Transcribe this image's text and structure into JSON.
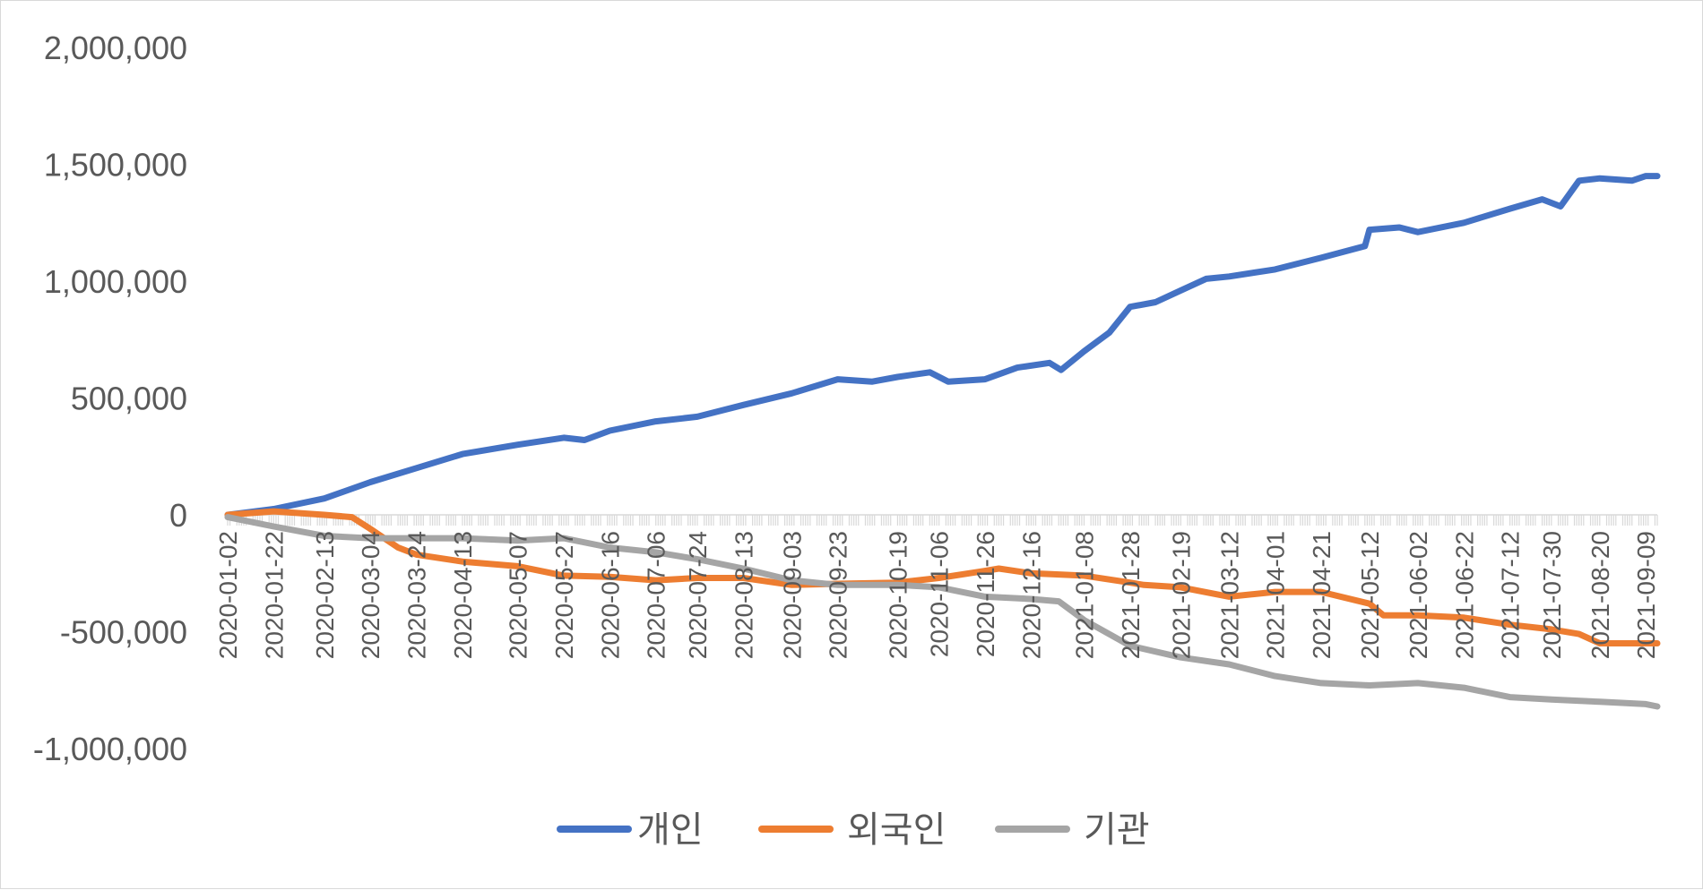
{
  "chart_data": {
    "type": "line",
    "title": "",
    "xlabel": "",
    "ylabel": "",
    "ylim": [
      -1000000,
      2000000
    ],
    "yticks": [
      2000000,
      1500000,
      1000000,
      500000,
      0,
      -500000,
      -1000000
    ],
    "ytick_labels": [
      "2,000,000",
      "1,500,000",
      "1,000,000",
      "500,000",
      "0",
      "-500,000",
      "-1,000,000"
    ],
    "x_range": [
      "2020-01-02",
      "2021-09-14"
    ],
    "xtick_labels": [
      "2020-01-02",
      "2020-01-22",
      "2020-02-13",
      "2020-03-04",
      "2020-03-24",
      "2020-04-13",
      "2020-05-07",
      "2020-05-27",
      "2020-06-16",
      "2020-07-06",
      "2020-07-24",
      "2020-08-13",
      "2020-09-03",
      "2020-09-23",
      "2020-10-19",
      "2020-11-06",
      "2020-11-26",
      "2020-12-16",
      "2021-01-08",
      "2021-01-28",
      "2021-02-19",
      "2021-03-12",
      "2021-04-01",
      "2021-04-21",
      "2021-05-12",
      "2021-06-02",
      "2021-06-22",
      "2021-07-12",
      "2021-07-30",
      "2021-08-20",
      "2021-09-09"
    ],
    "grid": false,
    "legend_position": "bottom",
    "series": [
      {
        "name": "개인",
        "color": "#4472c4",
        "points": [
          [
            "2020-01-02",
            0
          ],
          [
            "2020-01-22",
            25000
          ],
          [
            "2020-02-13",
            70000
          ],
          [
            "2020-03-04",
            140000
          ],
          [
            "2020-03-24",
            200000
          ],
          [
            "2020-04-13",
            260000
          ],
          [
            "2020-05-07",
            300000
          ],
          [
            "2020-05-27",
            330000
          ],
          [
            "2020-06-05",
            320000
          ],
          [
            "2020-06-16",
            360000
          ],
          [
            "2020-07-06",
            400000
          ],
          [
            "2020-07-24",
            420000
          ],
          [
            "2020-08-13",
            470000
          ],
          [
            "2020-09-03",
            520000
          ],
          [
            "2020-09-23",
            580000
          ],
          [
            "2020-10-08",
            570000
          ],
          [
            "2020-10-19",
            590000
          ],
          [
            "2020-11-02",
            610000
          ],
          [
            "2020-11-10",
            570000
          ],
          [
            "2020-11-26",
            580000
          ],
          [
            "2020-12-10",
            630000
          ],
          [
            "2020-12-24",
            650000
          ],
          [
            "2020-12-29",
            620000
          ],
          [
            "2021-01-08",
            700000
          ],
          [
            "2021-01-19",
            780000
          ],
          [
            "2021-01-28",
            890000
          ],
          [
            "2021-02-08",
            910000
          ],
          [
            "2021-02-19",
            960000
          ],
          [
            "2021-03-02",
            1010000
          ],
          [
            "2021-03-12",
            1020000
          ],
          [
            "2021-04-01",
            1050000
          ],
          [
            "2021-04-21",
            1100000
          ],
          [
            "2021-05-10",
            1150000
          ],
          [
            "2021-05-12",
            1220000
          ],
          [
            "2021-05-25",
            1230000
          ],
          [
            "2021-06-02",
            1210000
          ],
          [
            "2021-06-22",
            1250000
          ],
          [
            "2021-07-12",
            1310000
          ],
          [
            "2021-07-26",
            1350000
          ],
          [
            "2021-08-03",
            1320000
          ],
          [
            "2021-08-11",
            1430000
          ],
          [
            "2021-08-20",
            1440000
          ],
          [
            "2021-09-03",
            1430000
          ],
          [
            "2021-09-09",
            1450000
          ],
          [
            "2021-09-14",
            1450000
          ]
        ]
      },
      {
        "name": "외국인",
        "color": "#ed7d31",
        "points": [
          [
            "2020-01-02",
            0
          ],
          [
            "2020-01-22",
            15000
          ],
          [
            "2020-02-13",
            0
          ],
          [
            "2020-02-25",
            -10000
          ],
          [
            "2020-03-04",
            -60000
          ],
          [
            "2020-03-16",
            -140000
          ],
          [
            "2020-03-24",
            -170000
          ],
          [
            "2020-04-13",
            -200000
          ],
          [
            "2020-05-07",
            -220000
          ],
          [
            "2020-05-27",
            -260000
          ],
          [
            "2020-06-16",
            -265000
          ],
          [
            "2020-07-06",
            -280000
          ],
          [
            "2020-07-24",
            -270000
          ],
          [
            "2020-08-13",
            -270000
          ],
          [
            "2020-09-03",
            -300000
          ],
          [
            "2020-09-23",
            -295000
          ],
          [
            "2020-10-19",
            -290000
          ],
          [
            "2020-11-06",
            -270000
          ],
          [
            "2020-11-26",
            -240000
          ],
          [
            "2020-12-02",
            -230000
          ],
          [
            "2020-12-16",
            -250000
          ],
          [
            "2021-01-08",
            -260000
          ],
          [
            "2021-01-28",
            -290000
          ],
          [
            "2021-02-03",
            -300000
          ],
          [
            "2021-02-19",
            -310000
          ],
          [
            "2021-03-12",
            -350000
          ],
          [
            "2021-04-01",
            -330000
          ],
          [
            "2021-04-21",
            -330000
          ],
          [
            "2021-05-12",
            -380000
          ],
          [
            "2021-05-18",
            -430000
          ],
          [
            "2021-06-02",
            -430000
          ],
          [
            "2021-06-22",
            -440000
          ],
          [
            "2021-07-12",
            -470000
          ],
          [
            "2021-07-30",
            -490000
          ],
          [
            "2021-08-11",
            -510000
          ],
          [
            "2021-08-20",
            -550000
          ],
          [
            "2021-09-09",
            -550000
          ],
          [
            "2021-09-14",
            -550000
          ]
        ]
      },
      {
        "name": "기관",
        "color": "#a5a5a5",
        "points": [
          [
            "2020-01-02",
            -10000
          ],
          [
            "2020-01-22",
            -50000
          ],
          [
            "2020-02-13",
            -90000
          ],
          [
            "2020-03-04",
            -100000
          ],
          [
            "2020-03-24",
            -100000
          ],
          [
            "2020-04-13",
            -100000
          ],
          [
            "2020-05-07",
            -110000
          ],
          [
            "2020-05-27",
            -100000
          ],
          [
            "2020-06-16",
            -140000
          ],
          [
            "2020-07-06",
            -160000
          ],
          [
            "2020-07-24",
            -190000
          ],
          [
            "2020-08-13",
            -230000
          ],
          [
            "2020-09-03",
            -280000
          ],
          [
            "2020-09-23",
            -300000
          ],
          [
            "2020-10-19",
            -300000
          ],
          [
            "2020-11-06",
            -310000
          ],
          [
            "2020-11-26",
            -350000
          ],
          [
            "2020-12-16",
            -360000
          ],
          [
            "2020-12-28",
            -370000
          ],
          [
            "2021-01-08",
            -450000
          ],
          [
            "2021-01-28",
            -560000
          ],
          [
            "2021-02-19",
            -610000
          ],
          [
            "2021-03-12",
            -640000
          ],
          [
            "2021-04-01",
            -690000
          ],
          [
            "2021-04-21",
            -720000
          ],
          [
            "2021-05-12",
            -730000
          ],
          [
            "2021-06-02",
            -720000
          ],
          [
            "2021-06-22",
            -740000
          ],
          [
            "2021-07-12",
            -780000
          ],
          [
            "2021-07-30",
            -790000
          ],
          [
            "2021-08-20",
            -800000
          ],
          [
            "2021-09-09",
            -810000
          ],
          [
            "2021-09-14",
            -820000
          ]
        ]
      }
    ]
  }
}
